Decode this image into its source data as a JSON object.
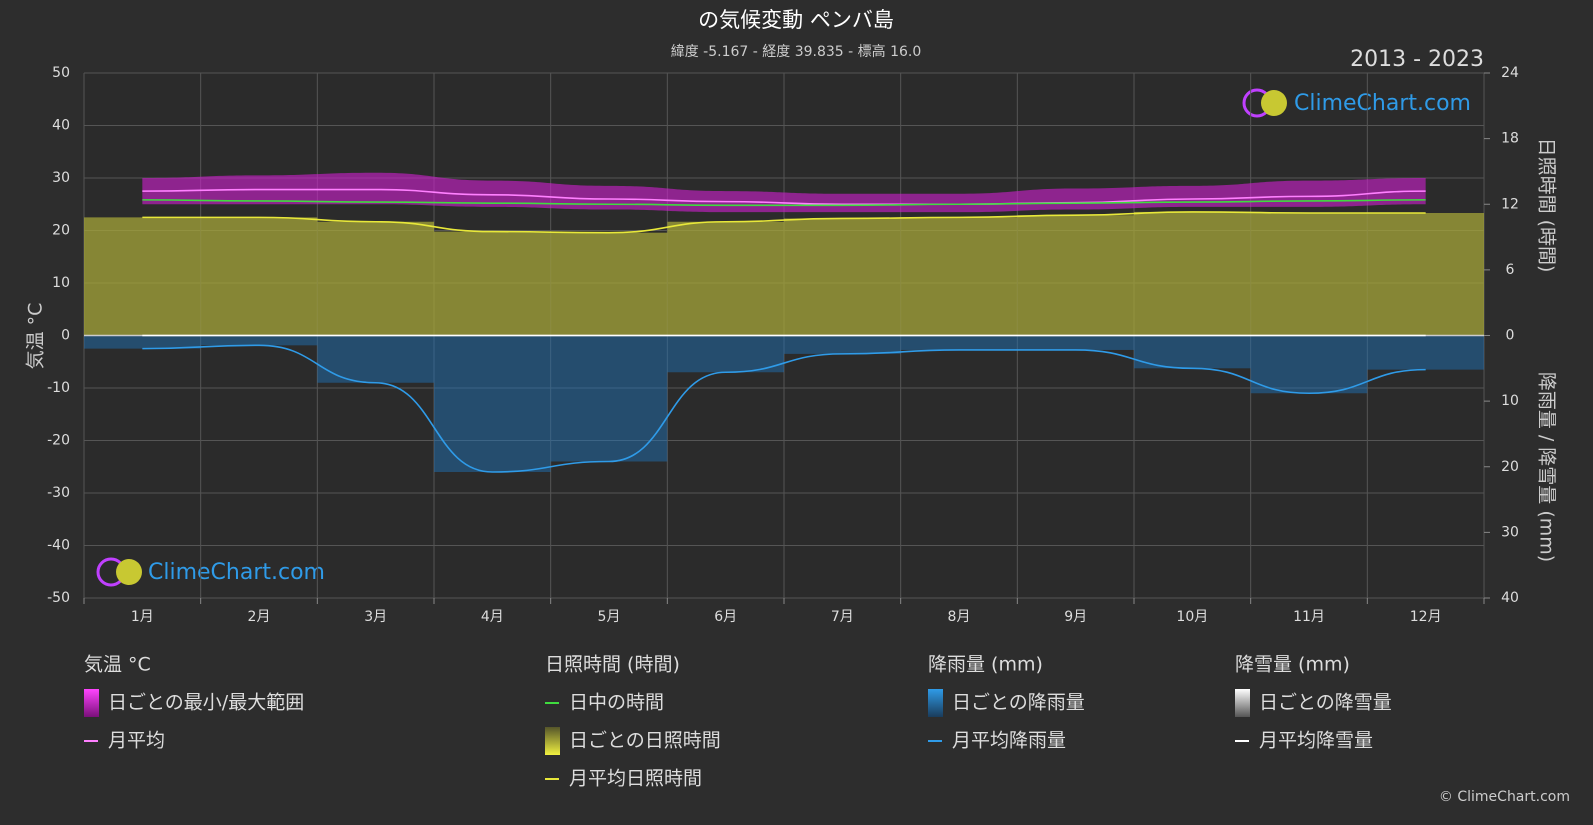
{
  "chart_data": {
    "type": "climate",
    "title": "の気候変動 ペンバ島",
    "subtitle": "緯度 -5.167 - 経度 39.835 - 標高 16.0",
    "period": "2013 - 2023",
    "watermark": "ClimeChart.com",
    "copyright": "© ClimeChart.com",
    "y_label": "気温 °C",
    "y2_label": "日照時間 (時間)",
    "y3_label": "降雨量 / 降雪量 (mm)",
    "rain_title": "降雨量 (mm)",
    "snow_title": "降雪量 (mm)",
    "categories": [
      "1月",
      "2月",
      "3月",
      "4月",
      "5月",
      "6月",
      "7月",
      "8月",
      "9月",
      "10月",
      "11月",
      "12月"
    ],
    "ylim": [
      -50,
      50
    ],
    "yticks": [
      -50,
      -40,
      -30,
      -20,
      -10,
      0,
      10,
      20,
      30,
      40,
      50
    ],
    "y2lim": [
      0,
      24
    ],
    "y2ticks": [
      0,
      6,
      12,
      18,
      24
    ],
    "y3lim": [
      0,
      40
    ],
    "y3ticks": [
      0,
      10,
      20,
      30,
      40
    ],
    "grid": true,
    "temp_range": {
      "name": "日ごとの最小/最大範囲",
      "color": "#d020d0",
      "min": [
        25,
        25,
        25,
        24.5,
        24,
        23.5,
        23.5,
        23.5,
        24,
        24.5,
        24.5,
        25
      ],
      "max": [
        30,
        30.5,
        31,
        29.5,
        28.5,
        27.5,
        27,
        27,
        28,
        28.5,
        29.5,
        30
      ]
    },
    "daily_sunshine": {
      "name": "日ごとの日照時間",
      "color": "#a6a63a"
    },
    "daily_rain": {
      "name": "日ごとの降雨量",
      "color": "#1f78c0"
    },
    "daily_snow": {
      "name": "日ごとの降雪量",
      "color": "#ffffff"
    },
    "series": [
      {
        "name": "月平均",
        "color": "#ff80ff",
        "values": [
          27.5,
          27.8,
          27.8,
          26.8,
          26,
          25.5,
          25,
          25,
          25.3,
          26,
          26.5,
          27.5
        ]
      },
      {
        "name": "日中の時間",
        "color": "#3fdc3f",
        "axis": "y2",
        "values": [
          12.4,
          12.3,
          12.2,
          12.1,
          12.0,
          11.9,
          11.9,
          12.0,
          12.1,
          12.2,
          12.3,
          12.4
        ]
      },
      {
        "name": "月平均日照時間",
        "color": "#e8e83a",
        "axis": "y2",
        "values": [
          10.8,
          10.8,
          10.4,
          9.5,
          9.4,
          10.4,
          10.7,
          10.8,
          11.0,
          11.3,
          11.2,
          11.2
        ]
      },
      {
        "name": "月平均降雨量",
        "color": "#2f9be8",
        "axis": "y3",
        "values": [
          2.0,
          1.5,
          7.2,
          20.8,
          19.2,
          5.6,
          2.8,
          2.2,
          2.2,
          5.0,
          8.8,
          5.2
        ]
      },
      {
        "name": "月平均降雪量",
        "color": "#ffffff",
        "axis": "y3",
        "values": [
          0,
          0,
          0,
          0,
          0,
          0,
          0,
          0,
          0,
          0,
          0,
          0
        ]
      }
    ]
  }
}
